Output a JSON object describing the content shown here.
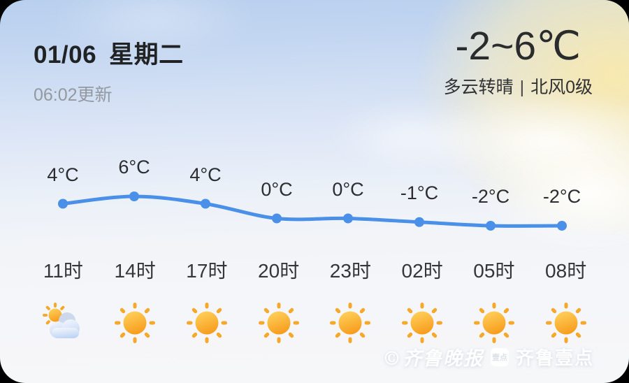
{
  "header": {
    "date": "01/06",
    "weekday": "星期二",
    "update_time": "06:02更新",
    "temp_range": "-2~6℃",
    "condition": "多云转晴",
    "divider": "|",
    "wind": "北风0级"
  },
  "chart_data": {
    "type": "line",
    "x": [
      "11时",
      "14时",
      "17时",
      "20时",
      "23时",
      "02时",
      "05时",
      "08时"
    ],
    "series": [
      {
        "name": "hourly-temperature",
        "values": [
          4,
          6,
          4,
          0,
          0,
          -1,
          -2,
          -2
        ]
      }
    ],
    "point_labels": [
      "4°C",
      "6°C",
      "4°C",
      "0°C",
      "0°C",
      "-1°C",
      "-2°C",
      "-2°C"
    ],
    "ylim": [
      -2,
      6
    ],
    "grid": false,
    "legend_position": "none",
    "line_color": "#4a90e8"
  },
  "icons": [
    "partly-cloudy",
    "sunny",
    "sunny",
    "sunny",
    "sunny",
    "sunny",
    "sunny",
    "sunny"
  ],
  "watermark": {
    "copyright": "©",
    "paper": "齐鲁晚报",
    "logo_text": "壹点",
    "app": "齐鲁壹点"
  },
  "colors": {
    "line": "#4a90e8",
    "sun_top": "#ffd15c",
    "sun_bottom": "#f79c1d",
    "sun_ray": "#f5a82a",
    "text_dark": "#212224",
    "text_gray": "#94999f"
  }
}
